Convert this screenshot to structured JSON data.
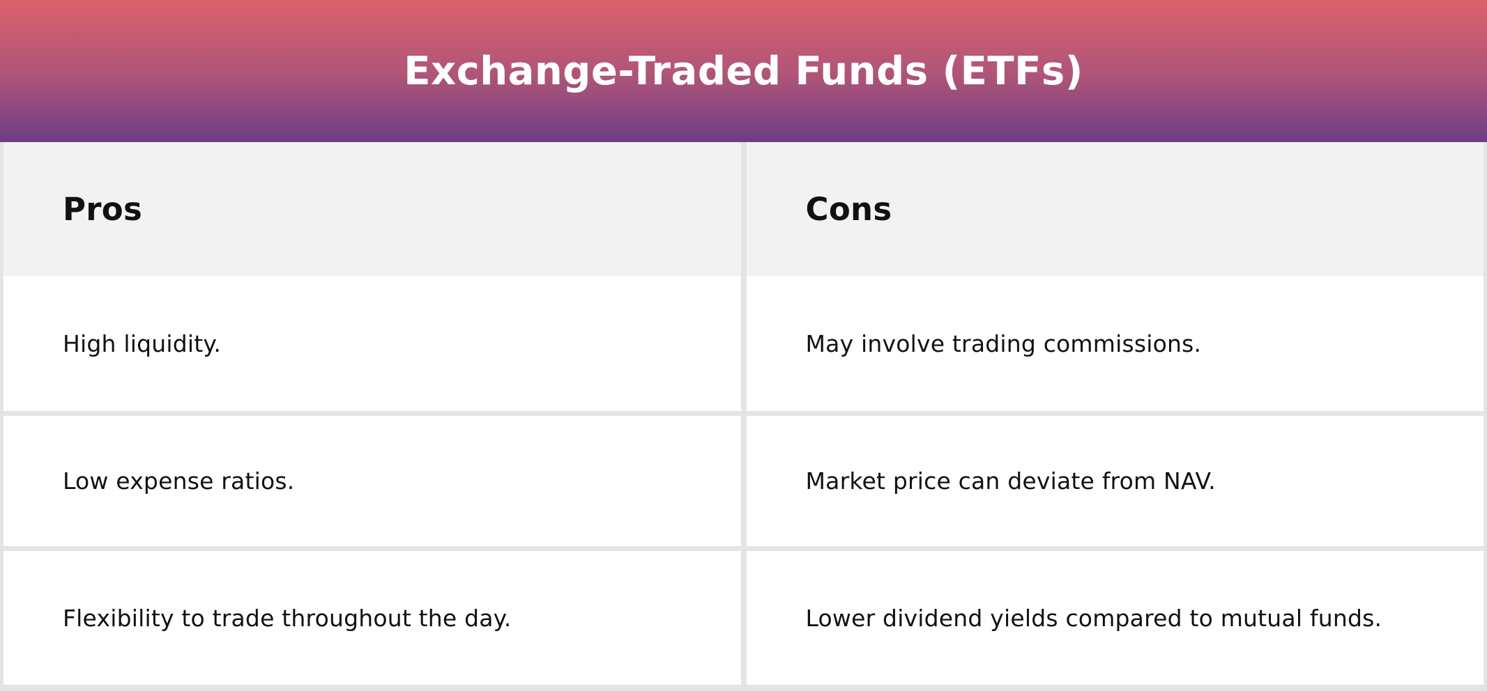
{
  "header": {
    "title": "Exchange-Traded Funds (ETFs)"
  },
  "table": {
    "columns": [
      {
        "header": "Pros",
        "rows": [
          "High liquidity.",
          "Low expense ratios.",
          "Flexibility to trade throughout the day."
        ]
      },
      {
        "header": "Cons",
        "rows": [
          "May involve trading commissions.",
          "Market price can deviate from NAV.",
          "Lower dividend yields compared to mutual funds."
        ]
      }
    ]
  },
  "colors": {
    "gradient_top": "#da6168",
    "gradient_mid": "#b05578",
    "gradient_bottom": "#6e3c86",
    "title_color": "#ffffff",
    "header_bg": "#f2f2f2",
    "row_bg": "#ffffff",
    "gutter": "#e4e4e4",
    "text": "#111111"
  }
}
